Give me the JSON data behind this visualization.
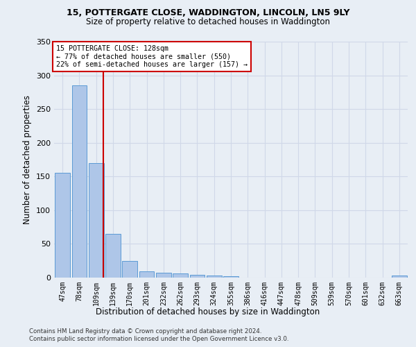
{
  "title1": "15, POTTERGATE CLOSE, WADDINGTON, LINCOLN, LN5 9LY",
  "title2": "Size of property relative to detached houses in Waddington",
  "xlabel": "Distribution of detached houses by size in Waddington",
  "ylabel": "Number of detached properties",
  "categories": [
    "47sqm",
    "78sqm",
    "109sqm",
    "139sqm",
    "170sqm",
    "201sqm",
    "232sqm",
    "262sqm",
    "293sqm",
    "324sqm",
    "355sqm",
    "386sqm",
    "416sqm",
    "447sqm",
    "478sqm",
    "509sqm",
    "539sqm",
    "570sqm",
    "601sqm",
    "632sqm",
    "663sqm"
  ],
  "values": [
    155,
    285,
    170,
    65,
    25,
    9,
    7,
    6,
    4,
    3,
    2,
    0,
    0,
    0,
    0,
    0,
    0,
    0,
    0,
    0,
    3
  ],
  "bar_color": "#aec6e8",
  "bar_edge_color": "#5b9bd5",
  "grid_color": "#d0d8e8",
  "background_color": "#e8eef5",
  "annotation_text": "15 POTTERGATE CLOSE: 128sqm\n← 77% of detached houses are smaller (550)\n22% of semi-detached houses are larger (157) →",
  "annotation_box_color": "#ffffff",
  "annotation_border_color": "#cc0000",
  "red_line_x": 2.42,
  "ylim": [
    0,
    350
  ],
  "yticks": [
    0,
    50,
    100,
    150,
    200,
    250,
    300,
    350
  ],
  "footnote1": "Contains HM Land Registry data © Crown copyright and database right 2024.",
  "footnote2": "Contains public sector information licensed under the Open Government Licence v3.0."
}
